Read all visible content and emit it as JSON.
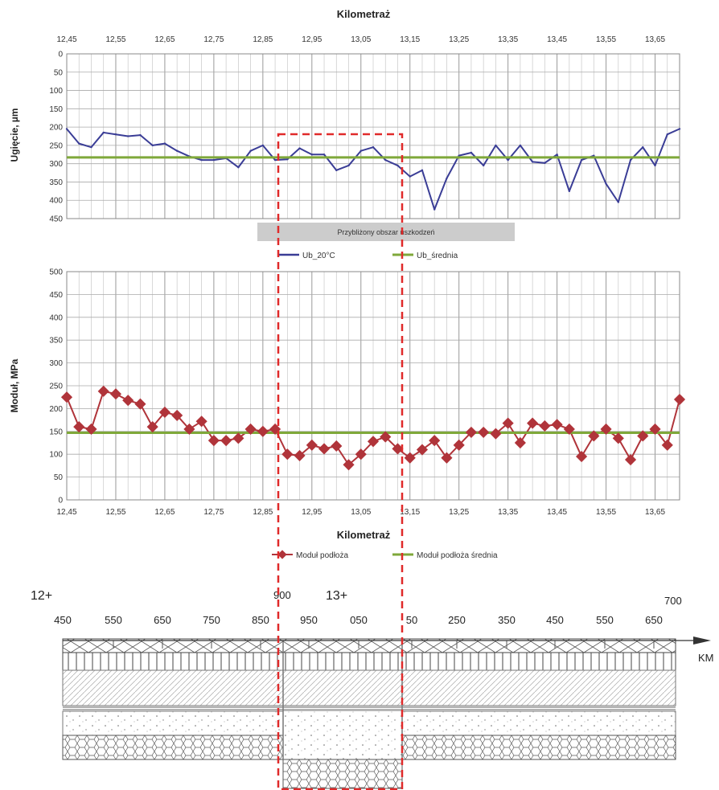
{
  "chart_data": [
    {
      "type": "line",
      "title": "Kilometraż",
      "ylabel": "Ugięcie, µm",
      "x_ticks": [
        "12,45",
        "12,55",
        "12,65",
        "12,75",
        "12,85",
        "12,95",
        "13,05",
        "13,15",
        "13,25",
        "13,35",
        "13,45",
        "13,55",
        "13,65"
      ],
      "xlim": [
        12.45,
        13.7
      ],
      "ylim": [
        0,
        450
      ],
      "y_ticks": [
        "0",
        "50",
        "100",
        "150",
        "200",
        "250",
        "300",
        "350",
        "400",
        "450"
      ],
      "y_inverted": true,
      "grid": true,
      "band_label": "Przybliżony obszar uszkodzeń",
      "series": [
        {
          "name": "Ub_20°C",
          "color": "#3a3d96",
          "x": [
            12.45,
            12.475,
            12.5,
            12.525,
            12.55,
            12.575,
            12.6,
            12.625,
            12.65,
            12.675,
            12.7,
            12.725,
            12.75,
            12.775,
            12.8,
            12.825,
            12.85,
            12.875,
            12.9,
            12.925,
            12.95,
            12.975,
            13.0,
            13.025,
            13.05,
            13.075,
            13.1,
            13.125,
            13.15,
            13.175,
            13.2,
            13.225,
            13.25,
            13.275,
            13.3,
            13.325,
            13.35,
            13.375,
            13.4,
            13.425,
            13.45,
            13.475,
            13.5,
            13.525,
            13.55,
            13.575,
            13.6,
            13.625,
            13.65,
            13.675,
            13.7
          ],
          "values": [
            205,
            245,
            255,
            215,
            220,
            225,
            222,
            250,
            245,
            265,
            280,
            290,
            290,
            285,
            310,
            265,
            250,
            290,
            288,
            258,
            275,
            275,
            318,
            305,
            265,
            255,
            290,
            305,
            335,
            318,
            425,
            340,
            278,
            270,
            305,
            250,
            290,
            250,
            295,
            298,
            275,
            375,
            290,
            278,
            355,
            405,
            290,
            255,
            305,
            220,
            205
          ]
        },
        {
          "name": "Ub_średnia",
          "color": "#7fa83a",
          "x": [
            12.45,
            13.7
          ],
          "values": [
            283,
            283
          ]
        }
      ]
    },
    {
      "type": "line",
      "title": "Kilometraż",
      "ylabel": "Moduł, MPa",
      "x_ticks": [
        "12,45",
        "12,55",
        "12,65",
        "12,75",
        "12,85",
        "12,95",
        "13,05",
        "13,15",
        "13,25",
        "13,35",
        "13,45",
        "13,55",
        "13,65"
      ],
      "xlim": [
        12.45,
        13.7
      ],
      "ylim": [
        0,
        500
      ],
      "y_ticks": [
        "0",
        "50",
        "100",
        "150",
        "200",
        "250",
        "300",
        "350",
        "400",
        "450",
        "500"
      ],
      "grid": true,
      "series": [
        {
          "name": "Moduł podłoża",
          "color": "#b0343a",
          "x": [
            12.45,
            12.475,
            12.5,
            12.525,
            12.55,
            12.575,
            12.6,
            12.625,
            12.65,
            12.675,
            12.7,
            12.725,
            12.75,
            12.775,
            12.8,
            12.825,
            12.85,
            12.875,
            12.9,
            12.925,
            12.95,
            12.975,
            13.0,
            13.025,
            13.05,
            13.075,
            13.1,
            13.125,
            13.15,
            13.175,
            13.2,
            13.225,
            13.25,
            13.275,
            13.3,
            13.325,
            13.35,
            13.375,
            13.4,
            13.425,
            13.45,
            13.475,
            13.5,
            13.525,
            13.55,
            13.575,
            13.6,
            13.625,
            13.65,
            13.675,
            13.7
          ],
          "values": [
            225,
            160,
            155,
            238,
            232,
            218,
            210,
            160,
            192,
            185,
            155,
            172,
            130,
            130,
            135,
            155,
            150,
            155,
            100,
            97,
            120,
            112,
            118,
            77,
            100,
            128,
            138,
            112,
            92,
            110,
            130,
            92,
            120,
            148,
            148,
            145,
            168,
            125,
            168,
            162,
            165,
            155,
            95,
            140,
            155,
            135,
            88,
            140,
            155,
            120,
            220
          ]
        },
        {
          "name": "Moduł podłoża średnia",
          "color": "#7fa83a",
          "x": [
            12.45,
            13.7
          ],
          "values": [
            147,
            147
          ]
        }
      ]
    }
  ],
  "profile": {
    "labels_top": [
      "12+",
      "13+",
      "700",
      "900"
    ],
    "km_ticks": [
      "450",
      "550",
      "650",
      "750",
      "850",
      "950",
      "050",
      "50",
      "250",
      "350",
      "450",
      "550",
      "650"
    ],
    "axis_unit": "KM"
  }
}
